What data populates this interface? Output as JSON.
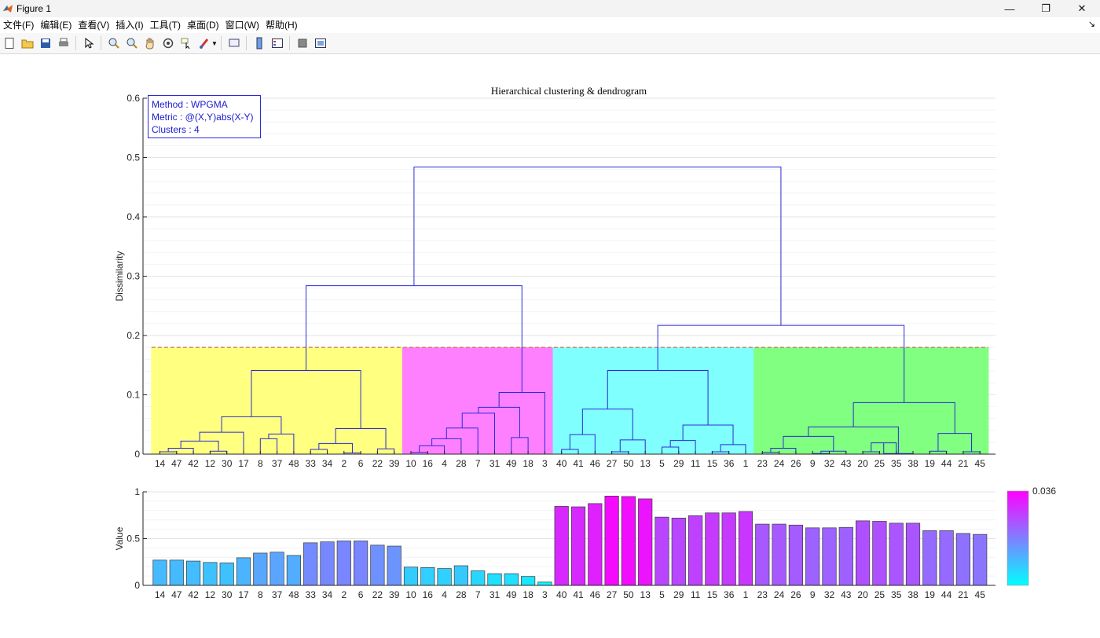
{
  "window": {
    "title": "Figure 1",
    "controls": [
      "—",
      "❐",
      "✕"
    ]
  },
  "menu": [
    "文件(F)",
    "编辑(E)",
    "查看(V)",
    "插入(I)",
    "工具(T)",
    "桌面(D)",
    "窗口(W)",
    "帮助(H)"
  ],
  "toolbar_icons": [
    "new-file-icon",
    "open-folder-icon",
    "save-icon",
    "print-icon",
    "pointer-icon",
    "zoom-in-icon",
    "zoom-out-icon",
    "pan-hand-icon",
    "rotate-3d-icon",
    "data-cursor-icon",
    "brush-icon",
    "link-plot-icon",
    "colorbar-icon",
    "legend-icon",
    "hide-plot-tools-icon",
    "show-plot-tools-icon"
  ],
  "chart_data": [
    {
      "type": "dendrogram",
      "title": "Hierarchical clustering & dendrogram",
      "ylabel": "Dissimilarity",
      "ylim": [
        0,
        0.6
      ],
      "yticks": [
        0,
        0.1,
        0.2,
        0.3,
        0.4,
        0.5,
        0.6
      ],
      "leaf_order": [
        14,
        47,
        42,
        12,
        30,
        17,
        8,
        37,
        48,
        33,
        34,
        2,
        6,
        22,
        39,
        10,
        16,
        4,
        28,
        7,
        31,
        49,
        18,
        3,
        40,
        41,
        46,
        27,
        50,
        13,
        5,
        29,
        11,
        15,
        36,
        1,
        23,
        24,
        26,
        9,
        32,
        43,
        20,
        25,
        35,
        38,
        19,
        44,
        21,
        45
      ],
      "cut_height": 0.18,
      "cluster_colors": [
        "#ffff80",
        "#ff80ff",
        "#80ffff",
        "#80ff80"
      ],
      "cluster_ranges": [
        [
          0,
          14
        ],
        [
          15,
          23
        ],
        [
          24,
          35
        ],
        [
          36,
          49
        ]
      ],
      "line_color": "#2b2bd6",
      "info_box": [
        "Method  : WPGMA",
        "Metric    : @(X,Y)abs(X-Y)",
        "Clusters : 4"
      ],
      "merges": [
        {
          "l": 0,
          "r": 1,
          "h": 0.004
        },
        {
          "l": 50,
          "r": 2,
          "h": 0.01
        },
        {
          "l": 3,
          "r": 4,
          "h": 0.005
        },
        {
          "l": 51,
          "r": 52,
          "h": 0.022
        },
        {
          "l": 53,
          "r": 5,
          "h": 0.037
        },
        {
          "l": 6,
          "r": 7,
          "h": 0.026
        },
        {
          "l": 55,
          "r": 8,
          "h": 0.034
        },
        {
          "l": 54,
          "r": 56,
          "h": 0.063
        },
        {
          "l": 9,
          "r": 10,
          "h": 0.008
        },
        {
          "l": 11,
          "r": 12,
          "h": 0.002
        },
        {
          "l": 58,
          "r": 59,
          "h": 0.018
        },
        {
          "l": 13,
          "r": 14,
          "h": 0.009
        },
        {
          "l": 60,
          "r": 61,
          "h": 0.043
        },
        {
          "l": 57,
          "r": 62,
          "h": 0.141
        },
        {
          "l": 15,
          "r": 16,
          "h": 0.003
        },
        {
          "l": 64,
          "r": 17,
          "h": 0.014
        },
        {
          "l": 65,
          "r": 18,
          "h": 0.026
        },
        {
          "l": 66,
          "r": 19,
          "h": 0.044
        },
        {
          "l": 67,
          "r": 20,
          "h": 0.069
        },
        {
          "l": 21,
          "r": 22,
          "h": 0.028
        },
        {
          "l": 68,
          "r": 69,
          "h": 0.079
        },
        {
          "l": 70,
          "r": 23,
          "h": 0.104
        },
        {
          "l": 63,
          "r": 71,
          "h": 0.284
        },
        {
          "l": 24,
          "r": 25,
          "h": 0.008
        },
        {
          "l": 73,
          "r": 26,
          "h": 0.033
        },
        {
          "l": 27,
          "r": 28,
          "h": 0.004
        },
        {
          "l": 75,
          "r": 29,
          "h": 0.024
        },
        {
          "l": 74,
          "r": 76,
          "h": 0.076
        },
        {
          "l": 30,
          "r": 31,
          "h": 0.012
        },
        {
          "l": 78,
          "r": 32,
          "h": 0.023
        },
        {
          "l": 33,
          "r": 34,
          "h": 0.004
        },
        {
          "l": 80,
          "r": 35,
          "h": 0.016
        },
        {
          "l": 79,
          "r": 81,
          "h": 0.049
        },
        {
          "l": 77,
          "r": 82,
          "h": 0.141
        },
        {
          "l": 36,
          "r": 37,
          "h": 0.003
        },
        {
          "l": 84,
          "r": 38,
          "h": 0.01
        },
        {
          "l": 39,
          "r": 40,
          "h": 0.001
        },
        {
          "l": 86,
          "r": 41,
          "h": 0.005
        },
        {
          "l": 85,
          "r": 87,
          "h": 0.03
        },
        {
          "l": 42,
          "r": 43,
          "h": 0.004
        },
        {
          "l": 89,
          "r": 44,
          "h": 0.019
        },
        {
          "l": 90,
          "r": 45,
          "h": 0.001
        },
        {
          "l": 88,
          "r": 91,
          "h": 0.046
        },
        {
          "l": 46,
          "r": 47,
          "h": 0.005
        },
        {
          "l": 48,
          "r": 49,
          "h": 0.004
        },
        {
          "l": 93,
          "r": 94,
          "h": 0.035
        },
        {
          "l": 92,
          "r": 95,
          "h": 0.087
        },
        {
          "l": 83,
          "r": 96,
          "h": 0.217
        },
        {
          "l": 72,
          "r": 97,
          "h": 0.484
        }
      ]
    },
    {
      "type": "bar",
      "ylabel": "Value",
      "ylim": [
        0,
        1
      ],
      "yticks": [
        0,
        0.5,
        1
      ],
      "categories": [
        14,
        47,
        42,
        12,
        30,
        17,
        8,
        37,
        48,
        33,
        34,
        2,
        6,
        22,
        39,
        10,
        16,
        4,
        28,
        7,
        31,
        49,
        18,
        3,
        40,
        41,
        46,
        27,
        50,
        13,
        5,
        29,
        11,
        15,
        36,
        1,
        23,
        24,
        26,
        9,
        32,
        43,
        20,
        25,
        35,
        38,
        19,
        44,
        21,
        45
      ],
      "values": [
        0.27,
        0.27,
        0.26,
        0.245,
        0.24,
        0.295,
        0.345,
        0.355,
        0.32,
        0.455,
        0.465,
        0.475,
        0.475,
        0.43,
        0.42,
        0.195,
        0.19,
        0.18,
        0.21,
        0.155,
        0.125,
        0.125,
        0.095,
        0.035,
        0.845,
        0.84,
        0.875,
        0.955,
        0.95,
        0.925,
        0.73,
        0.72,
        0.745,
        0.775,
        0.775,
        0.79,
        0.655,
        0.655,
        0.645,
        0.615,
        0.615,
        0.62,
        0.69,
        0.685,
        0.665,
        0.665,
        0.585,
        0.585,
        0.555,
        0.545
      ],
      "colorbar": {
        "max_label": "0.036",
        "low_color": "#00ffff",
        "high_color": "#ff00ff"
      }
    }
  ]
}
